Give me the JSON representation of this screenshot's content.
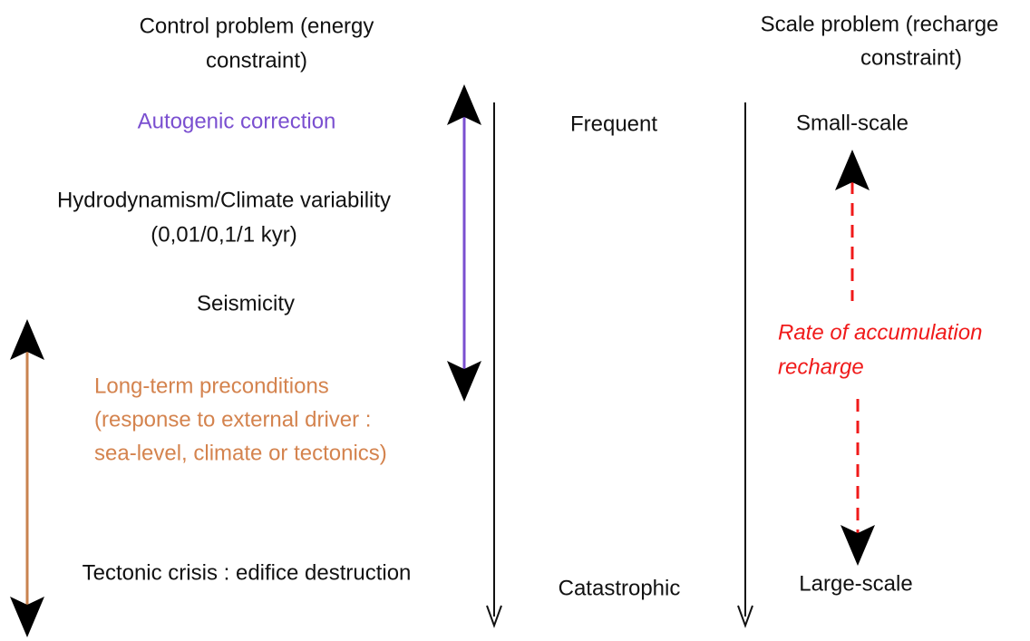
{
  "left_heading": {
    "lines": [
      "Control problem (energy",
      "constraint)"
    ]
  },
  "right_heading": {
    "lines": [
      "Scale problem (recharge",
      "constraint)"
    ]
  },
  "controls": {
    "autogenic": "Autogenic correction",
    "hydrodynamism": {
      "lines": [
        "Hydrodynamism/Climate variability",
        "(0,01/0,1/1 kyr)"
      ]
    },
    "seismicity": "Seismicity",
    "long_term": {
      "lines": [
        "Long-term preconditions",
        "(response to external driver :",
        "sea-level, climate or tectonics)"
      ]
    },
    "tectonic": "Tectonic crisis : edifice destruction"
  },
  "frequency": {
    "top": "Frequent",
    "bottom": "Catastrophic"
  },
  "scale": {
    "top": "Small-scale",
    "bottom": "Large-scale"
  },
  "recharge": {
    "lines": [
      "Rate of accumulation",
      "recharge"
    ]
  }
}
